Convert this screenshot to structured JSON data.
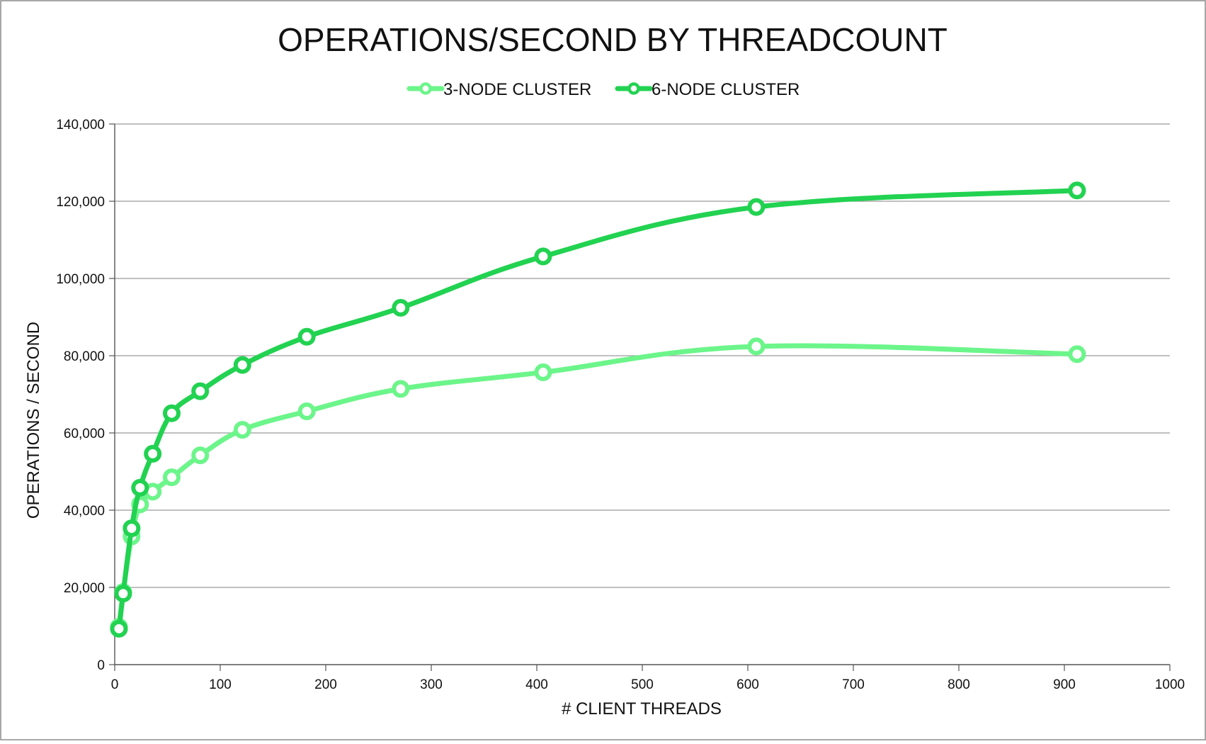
{
  "chart_data": {
    "type": "line",
    "title": "OPERATIONS/SECOND BY THREADCOUNT",
    "xlabel": "# CLIENT THREADS",
    "ylabel": "OPERATIONS / SECOND",
    "xlim": [
      0,
      1000
    ],
    "ylim": [
      0,
      140000
    ],
    "xticks": [
      0,
      100,
      200,
      300,
      400,
      500,
      600,
      700,
      800,
      900,
      1000
    ],
    "yticks": [
      0,
      20000,
      40000,
      60000,
      80000,
      100000,
      120000,
      140000
    ],
    "xtick_labels": [
      "0",
      "100",
      "200",
      "300",
      "400",
      "500",
      "600",
      "700",
      "800",
      "900",
      "1000"
    ],
    "ytick_labels": [
      "0",
      "20,000",
      "40,000",
      "60,000",
      "80,000",
      "100,000",
      "120,000",
      "140,000"
    ],
    "grid": "horizontal",
    "legend_position": "top-center",
    "series": [
      {
        "name": "3-NODE CLUSTER",
        "color": "#6cf58a",
        "x": [
          4,
          8,
          16,
          24,
          36,
          54,
          81,
          121,
          182,
          271,
          406,
          608,
          912
        ],
        "y": [
          9800,
          18800,
          33200,
          41500,
          44800,
          48500,
          54200,
          60800,
          65600,
          71400,
          75700,
          82400,
          80400
        ]
      },
      {
        "name": "6-NODE CLUSTER",
        "color": "#22d251",
        "x": [
          4,
          8,
          16,
          24,
          36,
          54,
          81,
          121,
          182,
          271,
          406,
          608,
          912
        ],
        "y": [
          9300,
          18400,
          35300,
          45800,
          54600,
          65100,
          70800,
          77600,
          84900,
          92400,
          105700,
          118500,
          122800
        ]
      }
    ]
  }
}
